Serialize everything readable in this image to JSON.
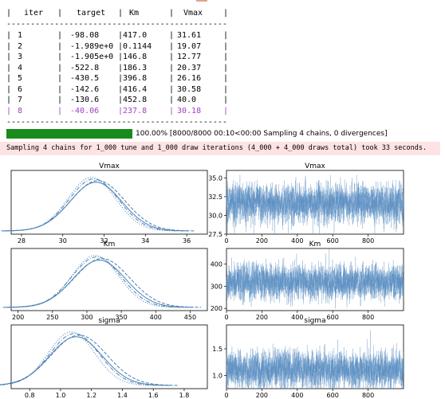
{
  "optimization_table": {
    "headers": [
      "iter",
      "target",
      "Km",
      "Vmax"
    ],
    "rows": [
      [
        "1",
        "-98.08",
        "417.0",
        "31.61"
      ],
      [
        "2",
        "-1.989e+0",
        "0.1144",
        "19.07"
      ],
      [
        "3",
        "-1.905e+0",
        "146.8",
        "12.77"
      ],
      [
        "4",
        "-522.8",
        "186.3",
        "20.37"
      ],
      [
        "5",
        "-430.5",
        "396.8",
        "26.16"
      ],
      [
        "6",
        "-142.6",
        "416.4",
        "30.58"
      ],
      [
        "7",
        "-130.6",
        "452.8",
        "40.0"
      ],
      [
        "8",
        "-40.06",
        "237.8",
        "30.18"
      ]
    ],
    "highlight_color": "#a23fc2"
  },
  "progress": {
    "fraction": 1.0,
    "text": "100.00% [8000/8000 00:10<00:00 Sampling 4 chains, 0 divergences]",
    "bar_color": "#1a8a1a"
  },
  "sampling_note": "Sampling 4 chains for 1_000 tune and 1_000 draw iterations (4_000 + 4_000 draws total) took 33 seconds.",
  "chart_data": [
    {
      "type": "line",
      "title": "Vmax",
      "kind": "density",
      "xlim": [
        27.5,
        37.0
      ],
      "xticks": [
        "28",
        "30",
        "32",
        "34",
        "36"
      ],
      "xtick_values": [
        28,
        30,
        32,
        34,
        36
      ],
      "chains": [
        {
          "mean": 31.6,
          "sd": 1.25,
          "style": "solid"
        },
        {
          "mean": 31.7,
          "sd": 1.3,
          "style": "dashed"
        },
        {
          "mean": 31.5,
          "sd": 1.2,
          "style": "dashdot"
        },
        {
          "mean": 31.4,
          "sd": 1.15,
          "style": "dotted"
        }
      ]
    },
    {
      "type": "line",
      "title": "Vmax",
      "kind": "trace",
      "xlim": [
        0,
        1000
      ],
      "ylim": [
        27.5,
        36.0
      ],
      "xticks": [
        "0",
        "200",
        "400",
        "600",
        "800"
      ],
      "xtick_values": [
        0,
        200,
        400,
        600,
        800
      ],
      "yticks": [
        "27.5",
        "30.0",
        "32.5",
        "35.0"
      ],
      "ytick_values": [
        27.5,
        30.0,
        32.5,
        35.0
      ],
      "mean": 31.6,
      "sd": 1.25
    },
    {
      "type": "line",
      "title": "Km",
      "kind": "density",
      "xlim": [
        190,
        475
      ],
      "xticks": [
        "200",
        "250",
        "300",
        "350",
        "400",
        "450"
      ],
      "xtick_values": [
        200,
        250,
        300,
        350,
        400,
        450
      ],
      "chains": [
        {
          "mean": 318,
          "sd": 38,
          "style": "solid"
        },
        {
          "mean": 322,
          "sd": 40,
          "style": "dashed"
        },
        {
          "mean": 314,
          "sd": 36,
          "style": "dashdot"
        },
        {
          "mean": 312,
          "sd": 34,
          "style": "dotted"
        }
      ]
    },
    {
      "type": "line",
      "title": "Km",
      "kind": "trace",
      "xlim": [
        0,
        1000
      ],
      "ylim": [
        190,
        470
      ],
      "xticks": [
        "0",
        "200",
        "400",
        "600",
        "800"
      ],
      "xtick_values": [
        0,
        200,
        400,
        600,
        800
      ],
      "yticks": [
        "200",
        "300",
        "400"
      ],
      "ytick_values": [
        200,
        300,
        400
      ],
      "mean": 318,
      "sd": 38
    },
    {
      "type": "line",
      "title": "sigma",
      "kind": "density",
      "xlim": [
        0.68,
        1.95
      ],
      "xticks": [
        "0.8",
        "1.0",
        "1.2",
        "1.4",
        "1.6",
        "1.8"
      ],
      "xtick_values": [
        0.8,
        1.0,
        1.2,
        1.4,
        1.6,
        1.8
      ],
      "chains": [
        {
          "mean": 1.1,
          "sd": 0.17,
          "style": "solid"
        },
        {
          "mean": 1.12,
          "sd": 0.18,
          "style": "dashed"
        },
        {
          "mean": 1.09,
          "sd": 0.16,
          "style": "dashdot"
        },
        {
          "mean": 1.07,
          "sd": 0.15,
          "style": "dotted"
        }
      ]
    },
    {
      "type": "line",
      "title": "sigma",
      "kind": "trace",
      "xlim": [
        0,
        1000
      ],
      "ylim": [
        0.75,
        1.95
      ],
      "xticks": [
        "0",
        "200",
        "400",
        "600",
        "800"
      ],
      "xtick_values": [
        0,
        200,
        400,
        600,
        800
      ],
      "yticks": [
        "1.0",
        "1.5"
      ],
      "ytick_values": [
        1.0,
        1.5
      ],
      "mean": 1.1,
      "sd": 0.17
    }
  ],
  "colors": {
    "line": "#4a7fb5",
    "trace": "#5b8ec2",
    "axis": "#000000"
  }
}
